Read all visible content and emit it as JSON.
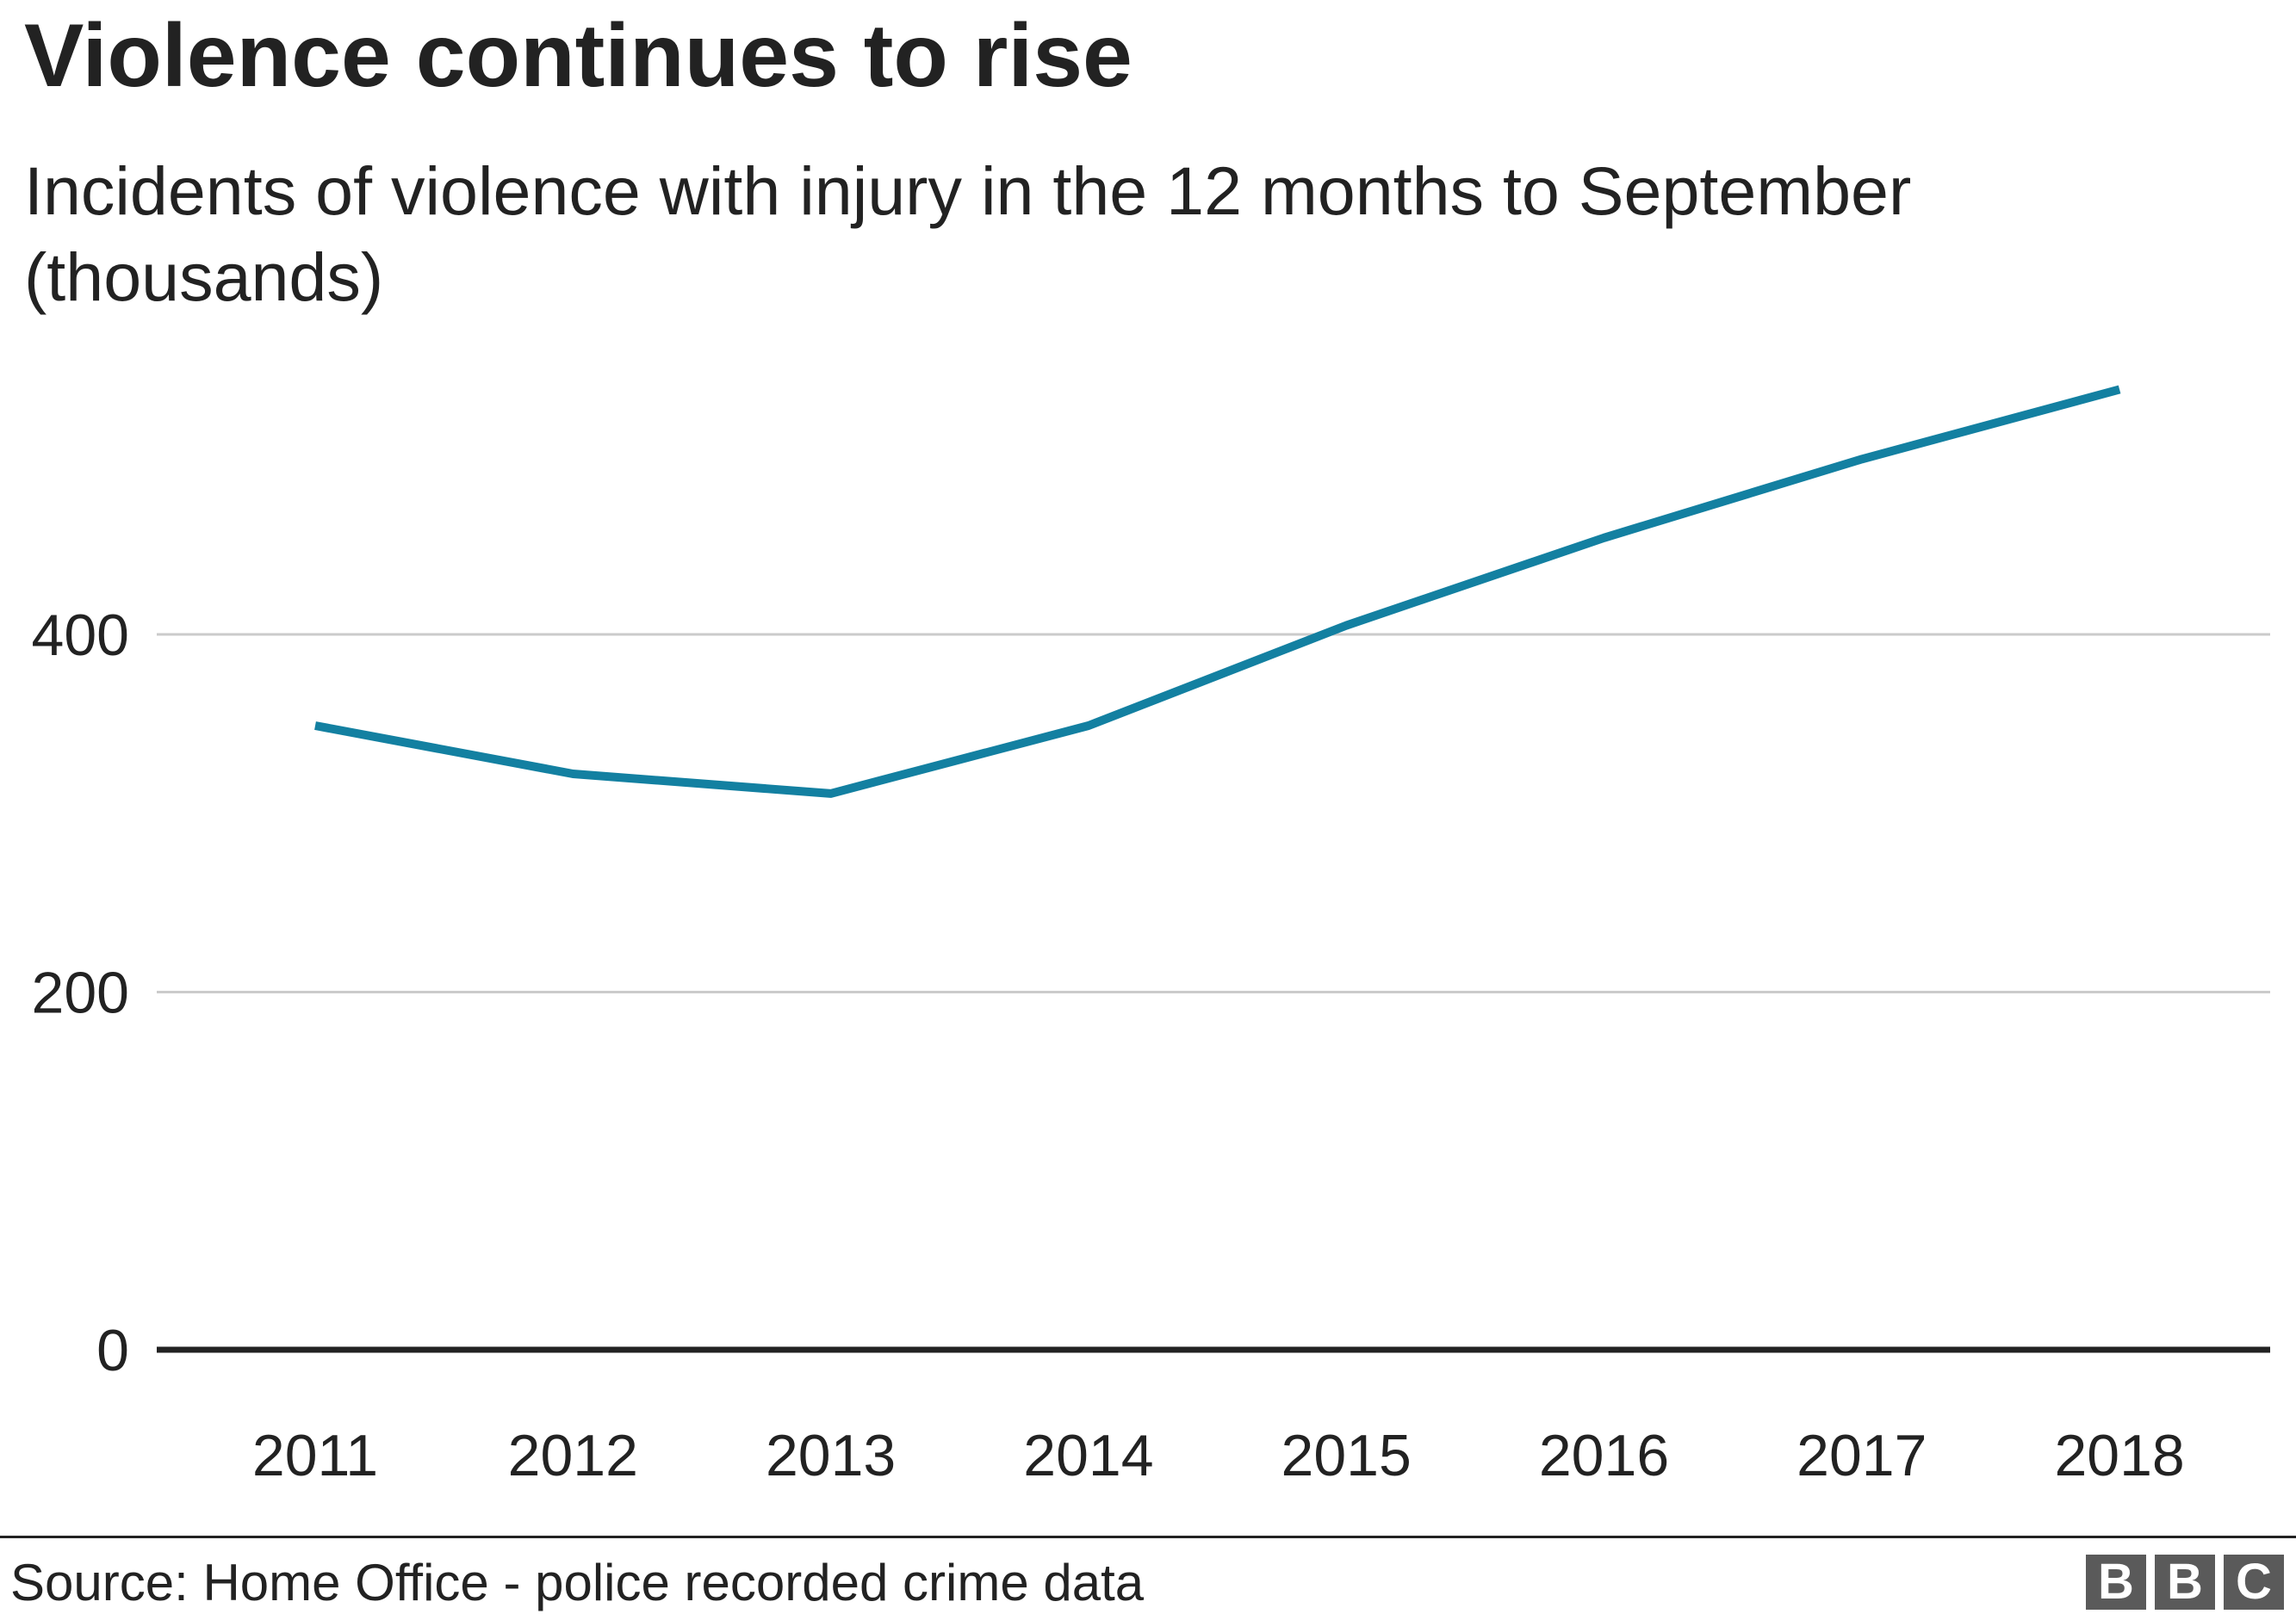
{
  "chart_data": {
    "type": "line",
    "title": "Violence continues to rise",
    "subtitle": "Incidents of violence with injury in the 12 months to September (thousands)",
    "xlabel": "",
    "ylabel": "",
    "categories": [
      "2011",
      "2012",
      "2013",
      "2014",
      "2015",
      "2016",
      "2017",
      "2018"
    ],
    "series": [
      {
        "name": "Violence with injury",
        "values": [
          349,
          322,
          311,
          349,
          405,
          454,
          498,
          537
        ]
      }
    ],
    "ylim": [
      0,
      560
    ],
    "yticks": [
      0,
      200,
      400
    ],
    "ytick_labels": [
      "0",
      "200",
      "400"
    ],
    "grid": true,
    "legend": "none"
  },
  "footer": {
    "source": "Source: Home Office - police recorded crime data",
    "logo_letters": [
      "B",
      "B",
      "C"
    ]
  },
  "colors": {
    "line": "#1380A1",
    "grid": "#cbcbcb",
    "baseline": "#222222",
    "text": "#222222",
    "logo_bg": "#5a5a5a"
  }
}
